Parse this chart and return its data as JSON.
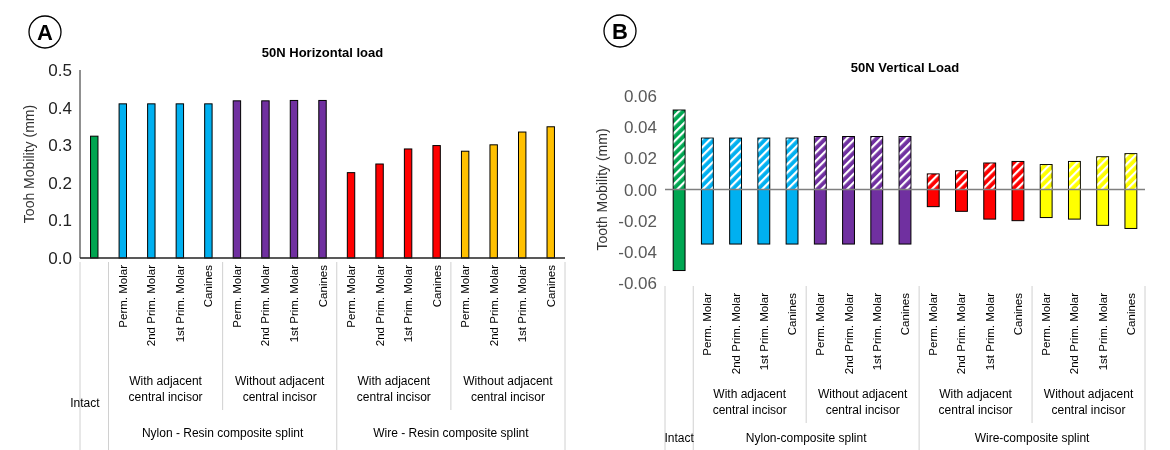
{
  "chart_data": [
    {
      "type": "bar",
      "title": "50N Horizontal load",
      "ylabel": "Tooh Mobility (mm)",
      "categories": [
        null,
        "Perm. Molar",
        "2nd Prim. Molar",
        "1st Prim. Molar",
        "Canines",
        "Perm. Molar",
        "2nd Prim. Molar",
        "1st Prim. Molar",
        "Canines",
        "Perm. Molar",
        "2nd Prim. Molar",
        "1st Prim. Molar",
        "Canines",
        "Perm. Molar",
        "2nd Prim. Molar",
        "1st Prim. Molar",
        "Canines"
      ],
      "values": [
        0.324,
        0.41,
        0.41,
        0.41,
        0.41,
        0.418,
        0.418,
        0.419,
        0.419,
        0.227,
        0.25,
        0.29,
        0.299,
        0.284,
        0.301,
        0.335,
        0.349
      ],
      "colors": [
        "#00a651",
        "#00b0f0",
        "#00b0f0",
        "#00b0f0",
        "#00b0f0",
        "#7030a0",
        "#7030a0",
        "#7030a0",
        "#7030a0",
        "#ff0000",
        "#ff0000",
        "#ff0000",
        "#ff0000",
        "#ffc000",
        "#ffc000",
        "#ffc000",
        "#ffc000"
      ],
      "ylim": [
        0,
        0.5
      ],
      "yticks": [
        {
          "value": 0,
          "label": "0.0"
        },
        {
          "value": 0.1,
          "label": "0.1"
        },
        {
          "value": 0.2,
          "label": "0.2"
        },
        {
          "value": 0.3,
          "label": "0.3"
        },
        {
          "value": 0.4,
          "label": "0.4"
        },
        {
          "value": 0.5,
          "label": "0.5"
        }
      ],
      "annotations": [
        "A",
        "Intact",
        "With adjacent central incisor",
        "Without adjacent central incisor",
        "With adjacent central incisor",
        "Without adjacent central incisor",
        "Nylon - Resin composite splint",
        "Wire - Resin composite splint"
      ]
    },
    {
      "type": "bar",
      "title": "50N Vertical Load",
      "ylabel": "Tooth Mobility (mm)",
      "stacked": true,
      "categories": [
        null,
        "Perm. Molar",
        "2nd Prim. Molar",
        "1st Prim. Molar",
        "Canines",
        "Perm. Molar",
        "2nd Prim. Molar",
        "1st Prim. Molar",
        "Canines",
        "Perm. Molar",
        "2nd Prim. Molar",
        "1st Prim. Molar",
        "Canines",
        "Perm. Molar",
        "2nd Prim. Molar",
        "1st Prim. Molar",
        "Canines"
      ],
      "series": [
        {
          "colors": [
            "#00a651",
            "#00b0f0",
            "#00b0f0",
            "#00b0f0",
            "#00b0f0",
            "#7030a0",
            "#7030a0",
            "#7030a0",
            "#7030a0",
            "#ff0000",
            "#ff0000",
            "#ff0000",
            "#ff0000",
            "#ffff00",
            "#ffff00",
            "#ffff00",
            "#ffff00"
          ],
          "values": [
            0.051,
            0.033,
            0.033,
            0.033,
            0.033,
            0.034,
            0.034,
            0.034,
            0.034,
            0.01,
            0.012,
            0.017,
            0.018,
            0.016,
            0.018,
            0.021,
            0.023
          ]
        },
        {
          "colors": [
            "#00a651",
            "#00b0f0",
            "#00b0f0",
            "#00b0f0",
            "#00b0f0",
            "#7030a0",
            "#7030a0",
            "#7030a0",
            "#7030a0",
            "#ff0000",
            "#ff0000",
            "#ff0000",
            "#ff0000",
            "#ffff00",
            "#ffff00",
            "#ffff00",
            "#ffff00"
          ],
          "values": [
            -0.052,
            -0.035,
            -0.035,
            -0.035,
            -0.035,
            -0.035,
            -0.035,
            -0.035,
            -0.035,
            -0.011,
            -0.014,
            -0.019,
            -0.02,
            -0.018,
            -0.019,
            -0.023,
            -0.025
          ]
        }
      ],
      "ylim": [
        -0.06,
        0.06
      ],
      "yticks": [
        {
          "value": -0.06,
          "label": "-0.06"
        },
        {
          "value": -0.04,
          "label": "-0.04"
        },
        {
          "value": -0.02,
          "label": "-0.02"
        },
        {
          "value": 0,
          "label": "0.00"
        },
        {
          "value": 0.02,
          "label": "0.02"
        },
        {
          "value": 0.04,
          "label": "0.04"
        },
        {
          "value": 0.06,
          "label": "0.06"
        }
      ],
      "annotations": [
        "B",
        "Intact",
        "With adjacent central incisor",
        "Without adjacent central incisor",
        "With adjacent central incisor",
        "Without adjacent central incisor",
        "Nylon-composite splint",
        "Wire-composite splint"
      ]
    }
  ]
}
